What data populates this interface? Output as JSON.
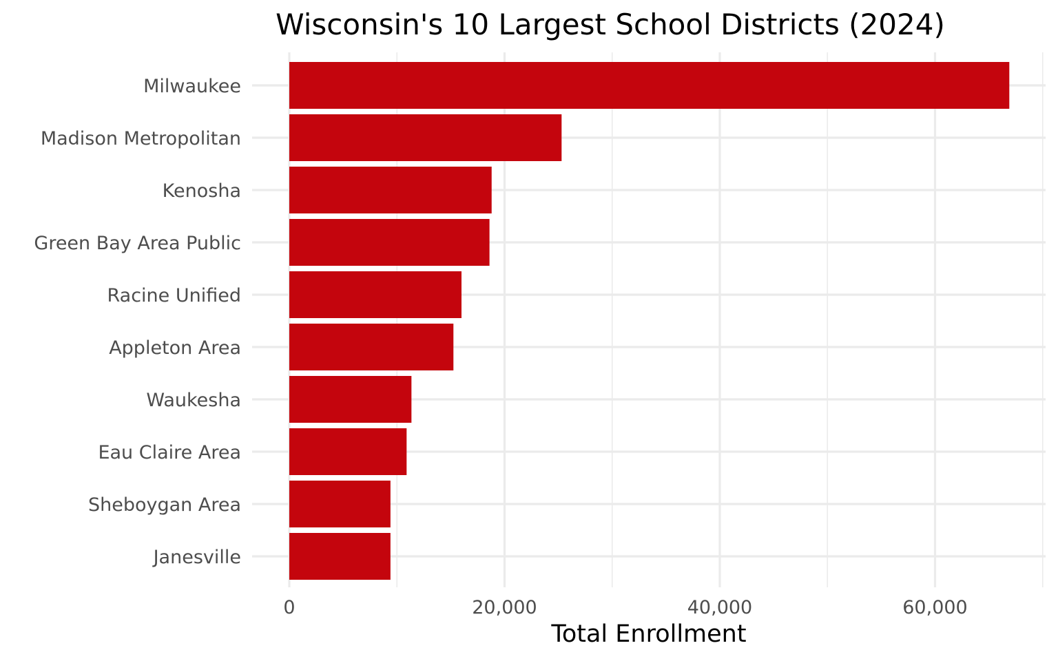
{
  "chart_data": {
    "type": "bar",
    "orientation": "horizontal",
    "title": "Wisconsin's 10 Largest School Districts (2024)",
    "xlabel": "Total Enrollment",
    "ylabel": "",
    "categories": [
      "Milwaukee",
      "Madison Metropolitan",
      "Kenosha",
      "Green Bay Area Public",
      "Racine Unified",
      "Appleton Area",
      "Waukesha",
      "Eau Claire Area",
      "Sheboygan Area",
      "Janesville"
    ],
    "values": [
      66900,
      25300,
      18800,
      18600,
      16000,
      15250,
      11350,
      10900,
      9400,
      9400
    ],
    "xlim": [
      0,
      70000
    ],
    "xticks": [
      0,
      20000,
      40000,
      60000
    ],
    "xtick_labels": [
      "0",
      "20,000",
      "40,000",
      "60,000"
    ],
    "bar_color": "#c4050d",
    "grid": true,
    "legend": "none"
  }
}
